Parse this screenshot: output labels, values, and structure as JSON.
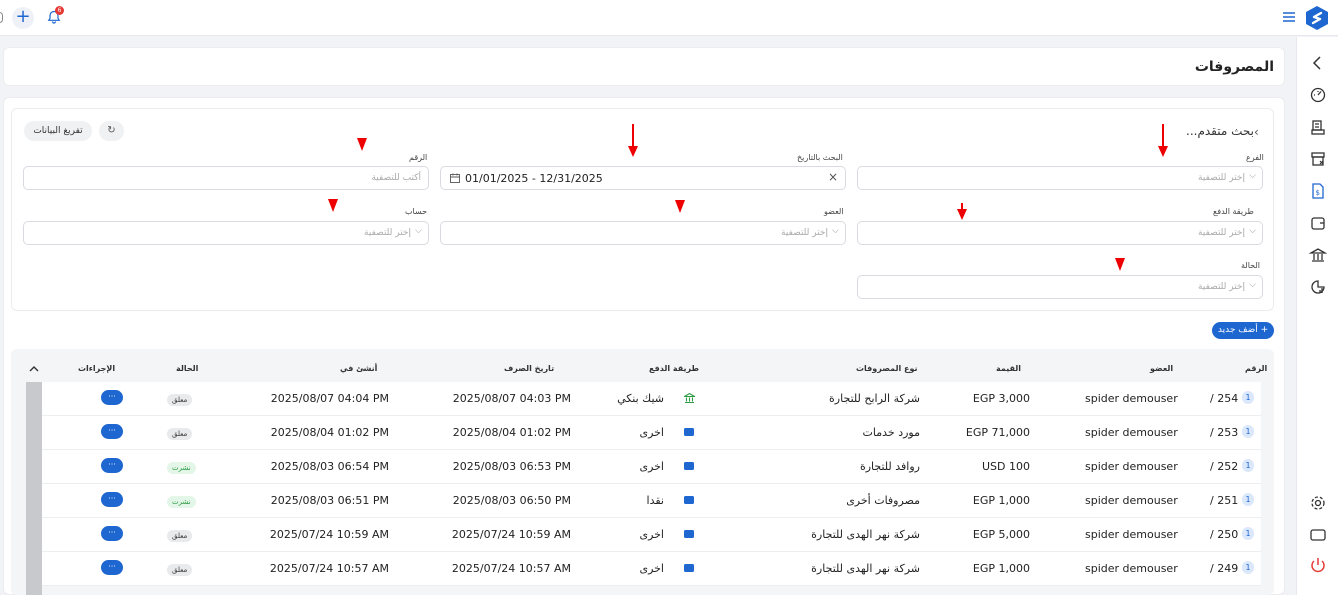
{
  "topbar": {
    "notif_count": "6"
  },
  "page": {
    "title": "المصروفات"
  },
  "filters": {
    "advanced_search": "بحث متقدم...",
    "clear_label": "تفريغ البيانات",
    "branch_label": "الفرع",
    "branch_placeholder": "إختر للتصفية",
    "date_label": "البحث بالتاريخ",
    "date_value": "01/01/2025 - 12/31/2025",
    "number_label": "الرقم",
    "number_placeholder": "أكتب للتصفية",
    "payment_label": "طريقة الدفع",
    "payment_placeholder": "إختر للتصفية",
    "member_label": "العضو",
    "member_placeholder": "إختر للتصفية",
    "account_label": "حساب",
    "account_placeholder": "إختر للتصفية",
    "status_label": "الحالة",
    "status_placeholder": "إختر للتصفية"
  },
  "add_new_label": "+ أضف جديد",
  "table": {
    "headers": {
      "number": "الرقم",
      "member": "العضو",
      "value": "القيمة",
      "expense_type": "نوع المصروفات",
      "payment_method": "طريقة الدفع",
      "expense_date": "تاريخ الصرف",
      "created_at": "أنشئ في",
      "status": "الحالة",
      "actions": "الإجراءات"
    },
    "rows": [
      {
        "badge": "1",
        "number": "/ 254",
        "member": "spider demouser",
        "value": "EGP 3,000",
        "type": "شركة الرابح للتجارة",
        "payment": "شيك بنكي",
        "payment_icon": "bank-icon",
        "expense_date": "2025/08/07 04:03 PM",
        "created_at": "2025/08/07 04:04 PM",
        "status": "معلق",
        "status_kind": "hung",
        "actions": "···"
      },
      {
        "badge": "1",
        "number": "/ 253",
        "member": "spider demouser",
        "value": "EGP 71,000",
        "type": "مورد خدمات",
        "payment": "اخرى",
        "payment_icon": "wallet-icon",
        "expense_date": "2025/08/04 01:02 PM",
        "created_at": "2025/08/04 01:02 PM",
        "status": "معلق",
        "status_kind": "hung",
        "actions": "···"
      },
      {
        "badge": "1",
        "number": "/ 252",
        "member": "spider demouser",
        "value": "USD 100",
        "type": "روافد للتجارة",
        "payment": "اخرى",
        "payment_icon": "wallet-icon",
        "expense_date": "2025/08/03 06:53 PM",
        "created_at": "2025/08/03 06:54 PM",
        "status": "نشرت",
        "status_kind": "pub",
        "actions": "···"
      },
      {
        "badge": "1",
        "number": "/ 251",
        "member": "spider demouser",
        "value": "EGP 1,000",
        "type": "مصروفات أخرى",
        "payment": "نقدا",
        "payment_icon": "wallet-icon",
        "expense_date": "2025/08/03 06:50 PM",
        "created_at": "2025/08/03 06:51 PM",
        "status": "نشرت",
        "status_kind": "pub",
        "actions": "···"
      },
      {
        "badge": "1",
        "number": "/ 250",
        "member": "spider demouser",
        "value": "EGP 5,000",
        "type": "شركة نهر الهدى للتجارة",
        "payment": "اخرى",
        "payment_icon": "wallet-icon",
        "expense_date": "2025/07/24 10:59 AM",
        "created_at": "2025/07/24 10:59 AM",
        "status": "معلق",
        "status_kind": "hung",
        "actions": "···"
      },
      {
        "badge": "1",
        "number": "/ 249",
        "member": "spider demouser",
        "value": "EGP 1,000",
        "type": "شركة نهر الهدى للتجارة",
        "payment": "اخرى",
        "payment_icon": "wallet-icon",
        "expense_date": "2025/07/24 10:57 AM",
        "created_at": "2025/07/24 10:57 AM",
        "status": "معلق",
        "status_kind": "hung",
        "actions": "···"
      }
    ]
  }
}
